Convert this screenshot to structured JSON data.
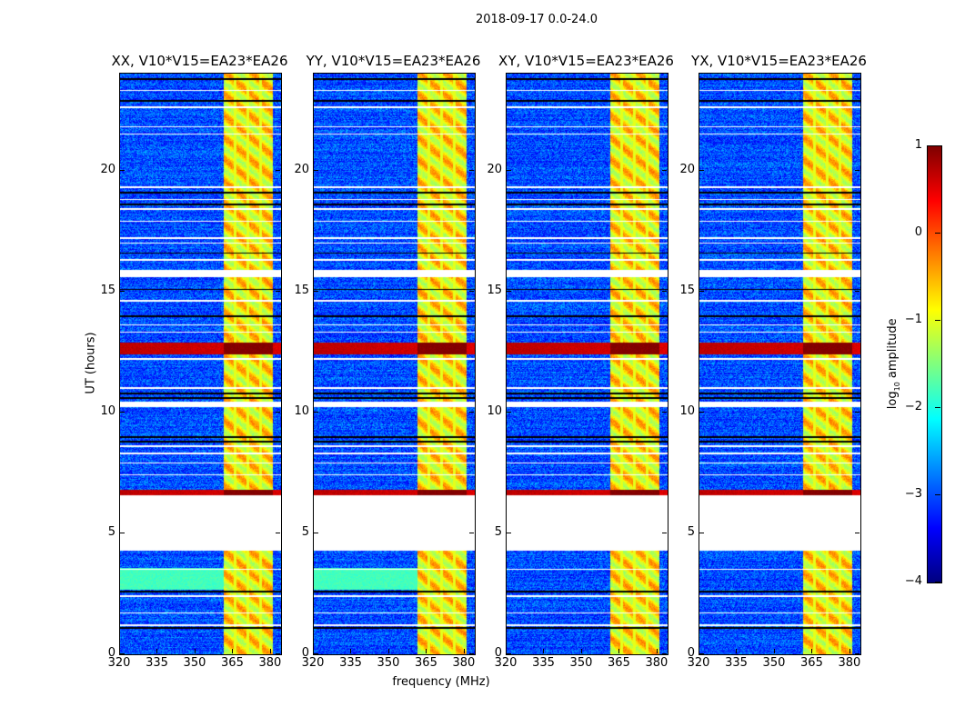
{
  "chart_data": {
    "type": "heatmap",
    "title": "2018-09-17 0.0-24.0",
    "xlabel": "frequency (MHz)",
    "ylabel": "UT (hours)",
    "xlim": [
      320,
      384
    ],
    "ylim": [
      0,
      24
    ],
    "xticks": [
      320,
      335,
      350,
      365,
      380
    ],
    "yticks": [
      0,
      5,
      10,
      15,
      20
    ],
    "panels": [
      {
        "title": "XX, V10*V15=EA23*EA26",
        "low_band_hours": [
          2.7,
          3.6
        ]
      },
      {
        "title": "YY, V10*V15=EA23*EA26",
        "low_band_hours": [
          2.7,
          3.6
        ]
      },
      {
        "title": "XY, V10*V15=EA23*EA26",
        "low_band_hours": null
      },
      {
        "title": "YX, V10*V15=EA23*EA26",
        "low_band_hours": null
      }
    ],
    "background_log_amplitude": -3.0,
    "rfi_band_mhz": [
      361,
      380.5
    ],
    "rfi_log_amplitude": -0.8,
    "strong_rfi_hours": [
      [
        12.4,
        12.9
      ],
      [
        6.6,
        6.8
      ]
    ],
    "strong_rfi_log_amplitude": 0.7,
    "flagged_hours": [
      [
        4.3,
        6.6
      ],
      [
        15.6,
        15.9
      ],
      [
        10.25,
        10.45
      ],
      [
        23.3,
        23.35
      ],
      [
        22.6,
        22.65
      ],
      [
        21.8,
        21.85
      ],
      [
        21.5,
        21.55
      ],
      [
        19.3,
        19.35
      ],
      [
        18.8,
        18.85
      ],
      [
        18.4,
        18.45
      ],
      [
        17.9,
        17.95
      ],
      [
        17.2,
        17.25
      ],
      [
        17.0,
        17.05
      ],
      [
        16.3,
        16.35
      ],
      [
        14.6,
        14.65
      ],
      [
        13.6,
        13.65
      ],
      [
        13.3,
        13.35
      ],
      [
        12.2,
        12.25
      ],
      [
        11.0,
        11.05
      ],
      [
        8.6,
        8.65
      ],
      [
        8.3,
        8.35
      ],
      [
        7.9,
        7.95
      ],
      [
        7.4,
        7.45
      ],
      [
        3.5,
        3.55
      ],
      [
        2.4,
        2.45
      ],
      [
        1.7,
        1.75
      ],
      [
        1.2,
        1.25
      ]
    ],
    "dark_rows_hours": [
      23.8,
      22.9,
      19.1,
      18.6,
      16.6,
      15.1,
      14.0,
      10.8,
      10.6,
      9.0,
      8.8,
      2.6,
      1.1
    ],
    "colorbar": {
      "label": "log10 amplitude",
      "label_main": "log",
      "label_sub": "10",
      "label_rest": " amplitude",
      "range": [
        -4,
        1
      ],
      "ticks": [
        1,
        0,
        -1,
        -2,
        -3,
        -4
      ],
      "tick_labels": [
        "1",
        "0",
        "−1",
        "−2",
        "−3",
        "−4"
      ],
      "colormap": "jet"
    }
  }
}
